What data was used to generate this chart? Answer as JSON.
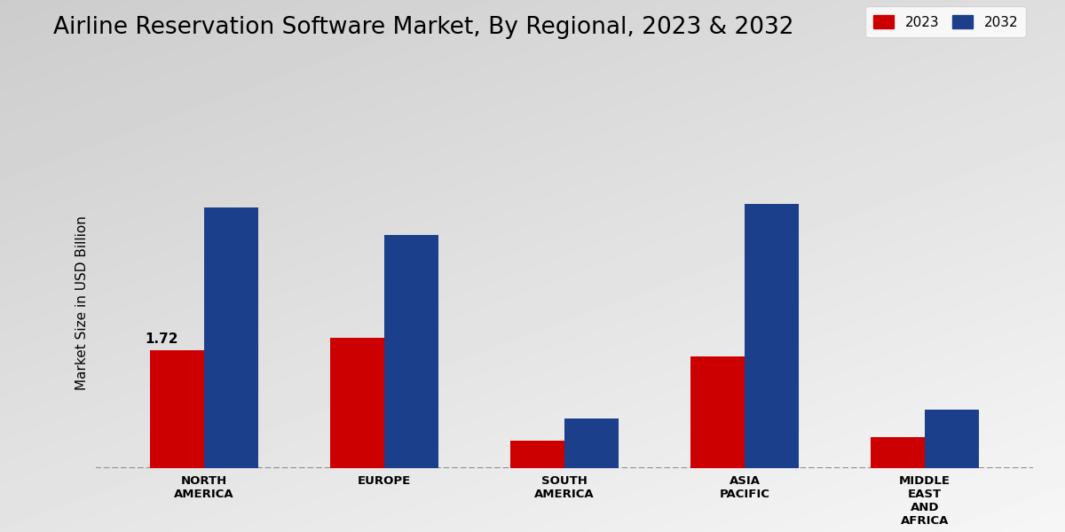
{
  "title": "Airline Reservation Software Market, By Regional, 2023 & 2032",
  "ylabel": "Market Size in USD Billion",
  "categories": [
    "NORTH\nAMERICA",
    "EUROPE",
    "SOUTH\nAMERICA",
    "ASIA\nPACIFIC",
    "MIDDLE\nEAST\nAND\nAFRICA"
  ],
  "values_2023": [
    1.72,
    1.9,
    0.4,
    1.62,
    0.45
  ],
  "values_2032": [
    3.8,
    3.4,
    0.72,
    3.85,
    0.85
  ],
  "color_2023": "#cc0000",
  "color_2032": "#1c3f8c",
  "annotation_label": "1.72",
  "annotation_bar_index": 0,
  "bar_width": 0.3,
  "ylim": [
    0,
    4.8
  ],
  "legend_labels": [
    "2023",
    "2032"
  ],
  "title_fontsize": 19,
  "ylabel_fontsize": 11,
  "tick_fontsize": 9.5,
  "legend_fontsize": 11,
  "annotation_fontsize": 11
}
